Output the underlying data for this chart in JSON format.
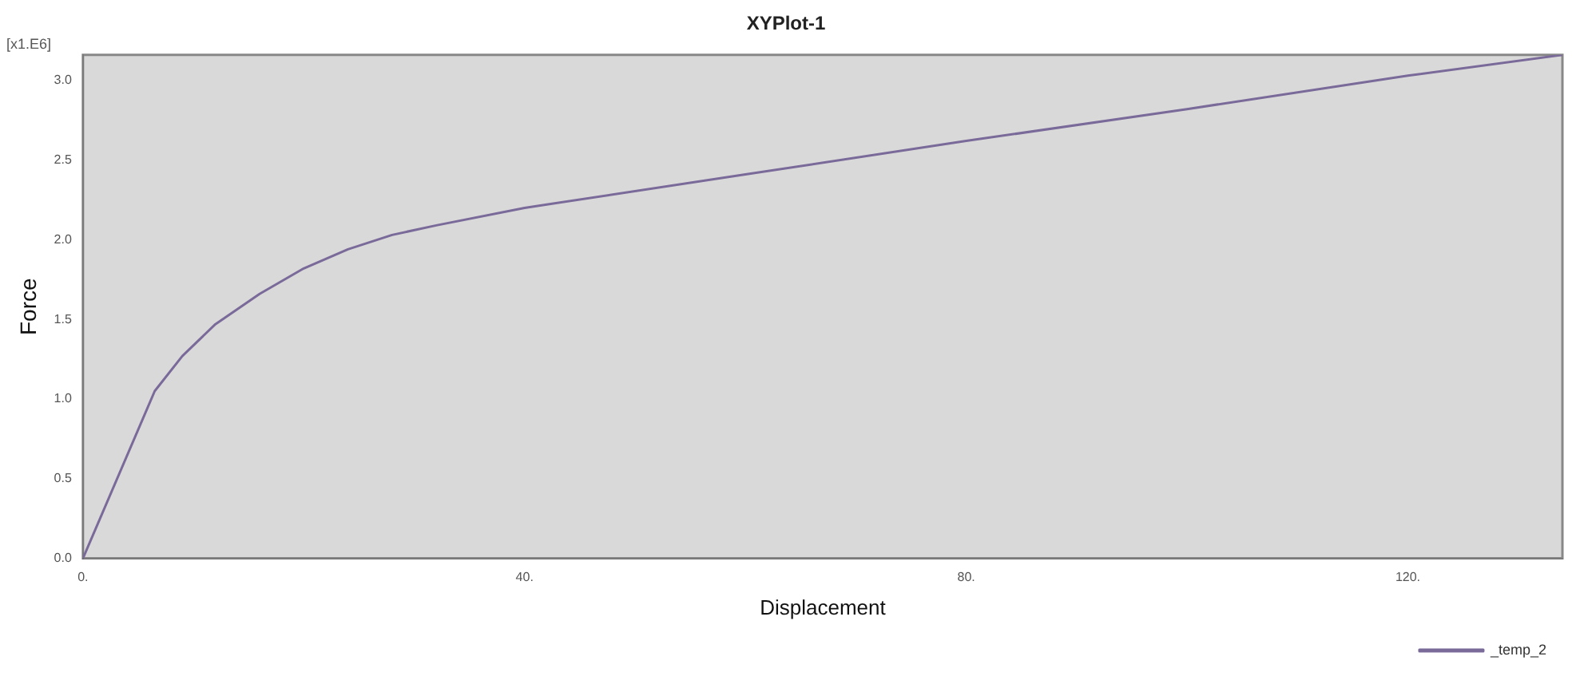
{
  "chart_data": {
    "type": "line",
    "title": "XYPlot-1",
    "xlabel": "Displacement",
    "ylabel": "Force",
    "annotations": [
      "[x1.E6]"
    ],
    "x": [
      0,
      6.5,
      9,
      12,
      16,
      20,
      24,
      28,
      32,
      40,
      60,
      80,
      100,
      120,
      134
    ],
    "series": [
      {
        "name": "_temp_2",
        "color": "#7a6a9a",
        "values": [
          0,
          1.05,
          1.27,
          1.47,
          1.66,
          1.82,
          1.94,
          2.03,
          2.09,
          2.2,
          2.41,
          2.62,
          2.82,
          3.03,
          3.16
        ]
      }
    ],
    "xlim": [
      0,
      134
    ],
    "xticks": [
      {
        "value": 0,
        "label": "0."
      },
      {
        "value": 40,
        "label": "40."
      },
      {
        "value": 80,
        "label": "80."
      },
      {
        "value": 120,
        "label": "120."
      }
    ],
    "ylim": [
      0,
      3.16
    ],
    "yticks": [
      {
        "value": 0,
        "label": "0.0"
      },
      {
        "value": 0.5,
        "label": "0.5"
      },
      {
        "value": 1,
        "label": "1.0"
      },
      {
        "value": 1.5,
        "label": "1.5"
      },
      {
        "value": 2,
        "label": "2.0"
      },
      {
        "value": 2.5,
        "label": "2.5"
      },
      {
        "value": 3,
        "label": "3.0"
      }
    ],
    "grid": false,
    "legend": "bottom right",
    "marker": "none",
    "line_style": "solid"
  }
}
